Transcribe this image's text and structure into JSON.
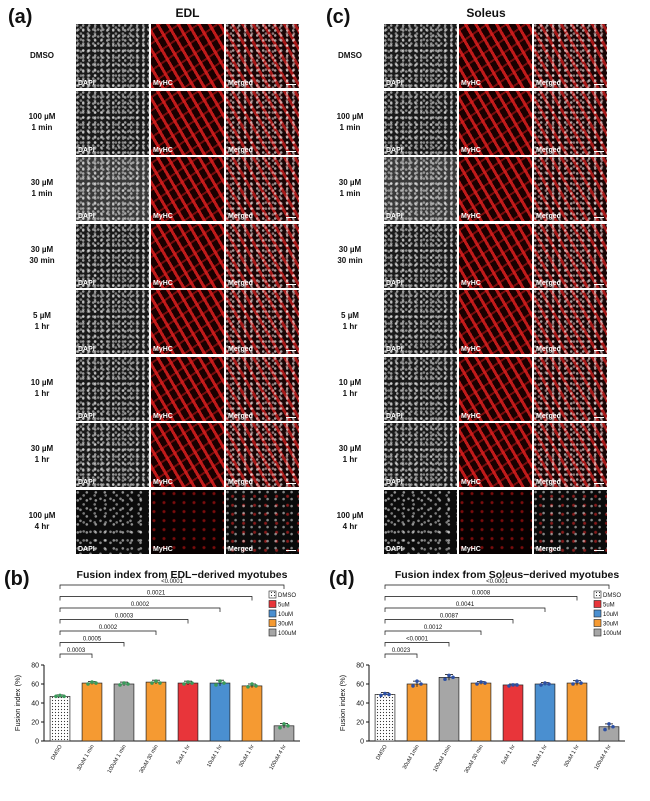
{
  "panels": {
    "a": {
      "letter": "(a)",
      "title": "EDL"
    },
    "c": {
      "letter": "(c)",
      "title": "Soleus"
    },
    "b": {
      "letter": "(b)",
      "title": "Fusion index from EDL−derived myotubes"
    },
    "d": {
      "letter": "(d)",
      "title": "Fusion index from Soleus−derived myotubes"
    }
  },
  "channels": [
    "DAPI",
    "MyHC",
    "Merged"
  ],
  "row_labels": [
    "DMSO",
    "100 µM\n1 min",
    "30 µM\n1 min",
    "30 µM\n30 min",
    "5 µM\n1 hr",
    "10 µM\n1 hr",
    "30 µM\n1 hr",
    "100 µM\n4 hr"
  ],
  "colors": {
    "dmso": "#ffffff",
    "c5": "#e8353a",
    "c10": "#4a8fd0",
    "c30": "#f59a32",
    "c100": "#a6a6a6"
  },
  "chart_data": [
    {
      "type": "bar",
      "title": "Fusion index from EDL−derived myotubes",
      "ylabel": "Fusion index (%)",
      "ylim": [
        0,
        80
      ],
      "yticks": [
        0,
        20,
        40,
        60,
        80
      ],
      "categories": [
        "DMSO",
        "30uM 1 min",
        "100uM 1 min",
        "30uM 30 min",
        "5uM 1 hr",
        "10uM 1 hr",
        "30uM 1 hr",
        "100uM 4 hr"
      ],
      "values": [
        47,
        61,
        60,
        62,
        61,
        61,
        58,
        16
      ],
      "errors": [
        1.5,
        1.5,
        2,
        2,
        2,
        3,
        2,
        2.5
      ],
      "points": [
        [
          47,
          48,
          47
        ],
        [
          60,
          62,
          61
        ],
        [
          59,
          61,
          60
        ],
        [
          61,
          63,
          61
        ],
        [
          60,
          62,
          61
        ],
        [
          59,
          63,
          61
        ],
        [
          57,
          60,
          58
        ],
        [
          14,
          18,
          16
        ]
      ],
      "bar_colors": [
        "dmso",
        "c30",
        "c100",
        "c30",
        "c5",
        "c10",
        "c30",
        "c100"
      ],
      "legend": [
        "DMSO",
        "5uM",
        "10uM",
        "30uM",
        "100uM"
      ],
      "legend_colors": [
        "dmso",
        "c5",
        "c10",
        "c30",
        "c100"
      ],
      "comparisons": [
        {
          "to": 1,
          "p": "0.0003"
        },
        {
          "to": 2,
          "p": "0.0005"
        },
        {
          "to": 3,
          "p": "0.0002"
        },
        {
          "to": 4,
          "p": "0.0003"
        },
        {
          "to": 5,
          "p": "0.0002"
        },
        {
          "to": 6,
          "p": "0.0021"
        },
        {
          "to": 7,
          "p": "<0.0001"
        }
      ]
    },
    {
      "type": "bar",
      "title": "Fusion index from Soleus−derived myotubes",
      "ylabel": "Fusion index (%)",
      "ylim": [
        0,
        80
      ],
      "yticks": [
        0,
        20,
        40,
        60,
        80
      ],
      "categories": [
        "DMSO",
        "30uM 1min",
        "100uM 1min",
        "30uM 30 min",
        "5uM 1 hr",
        "10uM 1 hr",
        "30uM 1 hr",
        "100uM 4 hr"
      ],
      "values": [
        49,
        60,
        67,
        61,
        59,
        60,
        61,
        15
      ],
      "errors": [
        2,
        3,
        3,
        1.5,
        1,
        1.5,
        2.5,
        3
      ],
      "points": [
        [
          48,
          50,
          49
        ],
        [
          58,
          63,
          60
        ],
        [
          65,
          69,
          67
        ],
        [
          60,
          62,
          61
        ],
        [
          58,
          59,
          59
        ],
        [
          59,
          61,
          60
        ],
        [
          60,
          63,
          61
        ],
        [
          12,
          18,
          15
        ]
      ],
      "bar_colors": [
        "dmso",
        "c30",
        "c100",
        "c30",
        "c5",
        "c10",
        "c30",
        "c100"
      ],
      "legend": [
        "DMSO",
        "5uM",
        "10uM",
        "30uM",
        "100uM"
      ],
      "legend_colors": [
        "dmso",
        "c5",
        "c10",
        "c30",
        "c100"
      ],
      "comparisons": [
        {
          "to": 1,
          "p": "0.0023"
        },
        {
          "to": 2,
          "p": "<0.0001"
        },
        {
          "to": 3,
          "p": "0.0012"
        },
        {
          "to": 4,
          "p": "0.0087"
        },
        {
          "to": 5,
          "p": "0.0041"
        },
        {
          "to": 6,
          "p": "0.0008"
        },
        {
          "to": 7,
          "p": "<0.0001"
        }
      ]
    }
  ]
}
